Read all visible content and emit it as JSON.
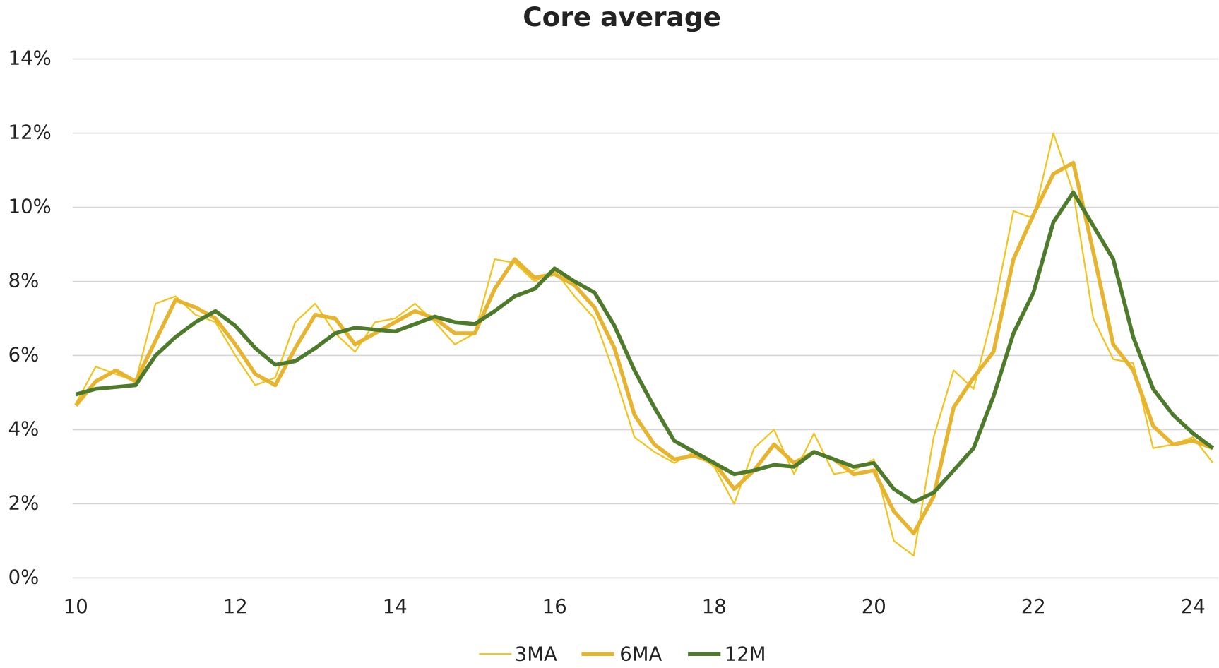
{
  "chart_data": {
    "type": "line",
    "title": "Core average",
    "x": [
      10,
      10.25,
      10.5,
      10.75,
      11,
      11.25,
      11.5,
      11.75,
      12,
      12.25,
      12.5,
      12.75,
      13,
      13.25,
      13.5,
      13.75,
      14,
      14.25,
      14.5,
      14.75,
      15,
      15.25,
      15.5,
      15.75,
      16,
      16.25,
      16.5,
      16.75,
      17,
      17.25,
      17.5,
      17.75,
      18,
      18.25,
      18.5,
      18.75,
      19,
      19.25,
      19.5,
      19.75,
      20,
      20.25,
      20.5,
      20.75,
      21,
      21.25,
      21.5,
      21.75,
      22,
      22.25,
      22.5,
      22.75,
      23,
      23.25,
      23.5,
      23.75,
      24,
      24.25
    ],
    "series": [
      {
        "name": "3MA",
        "color": "#f2c31a",
        "values": [
          4.7,
          5.7,
          5.5,
          5.3,
          7.4,
          7.6,
          7.1,
          6.9,
          6.0,
          5.2,
          5.4,
          6.9,
          7.4,
          6.6,
          6.1,
          6.9,
          7.0,
          7.4,
          6.9,
          6.3,
          6.6,
          8.6,
          8.5,
          8.0,
          8.3,
          7.6,
          7.0,
          5.5,
          3.8,
          3.4,
          3.1,
          3.4,
          3.0,
          2.0,
          3.5,
          4.0,
          2.8,
          3.9,
          2.8,
          2.9,
          3.2,
          1.0,
          0.6,
          3.8,
          5.6,
          5.1,
          7.2,
          9.9,
          9.7,
          12.0,
          10.4,
          7.0,
          5.9,
          5.8,
          3.5,
          3.6,
          3.8,
          3.1
        ]
      },
      {
        "name": "6MA",
        "color": "#e6b42e",
        "values": [
          4.65,
          5.3,
          5.6,
          5.3,
          6.4,
          7.5,
          7.3,
          7.0,
          6.3,
          5.5,
          5.2,
          6.2,
          7.1,
          7.0,
          6.3,
          6.6,
          6.9,
          7.2,
          7.0,
          6.6,
          6.6,
          7.8,
          8.6,
          8.1,
          8.2,
          7.9,
          7.3,
          6.2,
          4.4,
          3.6,
          3.2,
          3.3,
          3.1,
          2.4,
          2.9,
          3.6,
          3.1,
          3.4,
          3.2,
          2.8,
          2.9,
          1.8,
          1.2,
          2.2,
          4.6,
          5.4,
          6.1,
          8.6,
          9.8,
          10.9,
          11.2,
          8.8,
          6.3,
          5.6,
          4.1,
          3.6,
          3.7,
          3.5
        ]
      },
      {
        "name": "12M",
        "color": "#4e7a2c",
        "values": [
          4.95,
          5.1,
          5.15,
          5.2,
          6.0,
          6.5,
          6.9,
          7.2,
          6.8,
          6.2,
          5.75,
          5.85,
          6.2,
          6.6,
          6.75,
          6.7,
          6.65,
          6.85,
          7.05,
          6.9,
          6.85,
          7.2,
          7.6,
          7.8,
          8.35,
          8.0,
          7.7,
          6.8,
          5.6,
          4.6,
          3.7,
          3.4,
          3.1,
          2.8,
          2.9,
          3.05,
          3.0,
          3.4,
          3.2,
          3.0,
          3.1,
          2.4,
          2.05,
          2.3,
          2.9,
          3.5,
          4.9,
          6.6,
          7.7,
          9.6,
          10.4,
          9.5,
          8.6,
          6.5,
          5.1,
          4.4,
          3.9,
          3.5
        ]
      }
    ],
    "xlim": [
      10,
      24.32
    ],
    "xticks": [
      10,
      12,
      14,
      16,
      18,
      20,
      22,
      24
    ],
    "ylim": [
      0,
      14
    ],
    "yticks": [
      {
        "value": 0,
        "label": "0%"
      },
      {
        "value": 2,
        "label": "2%"
      },
      {
        "value": 4,
        "label": "4%"
      },
      {
        "value": 6,
        "label": "6%"
      },
      {
        "value": 8,
        "label": "8%"
      },
      {
        "value": 10,
        "label": "10%"
      },
      {
        "value": 12,
        "label": "12%"
      },
      {
        "value": 14,
        "label": "14%"
      }
    ],
    "grid": true,
    "legend": "bottom"
  }
}
